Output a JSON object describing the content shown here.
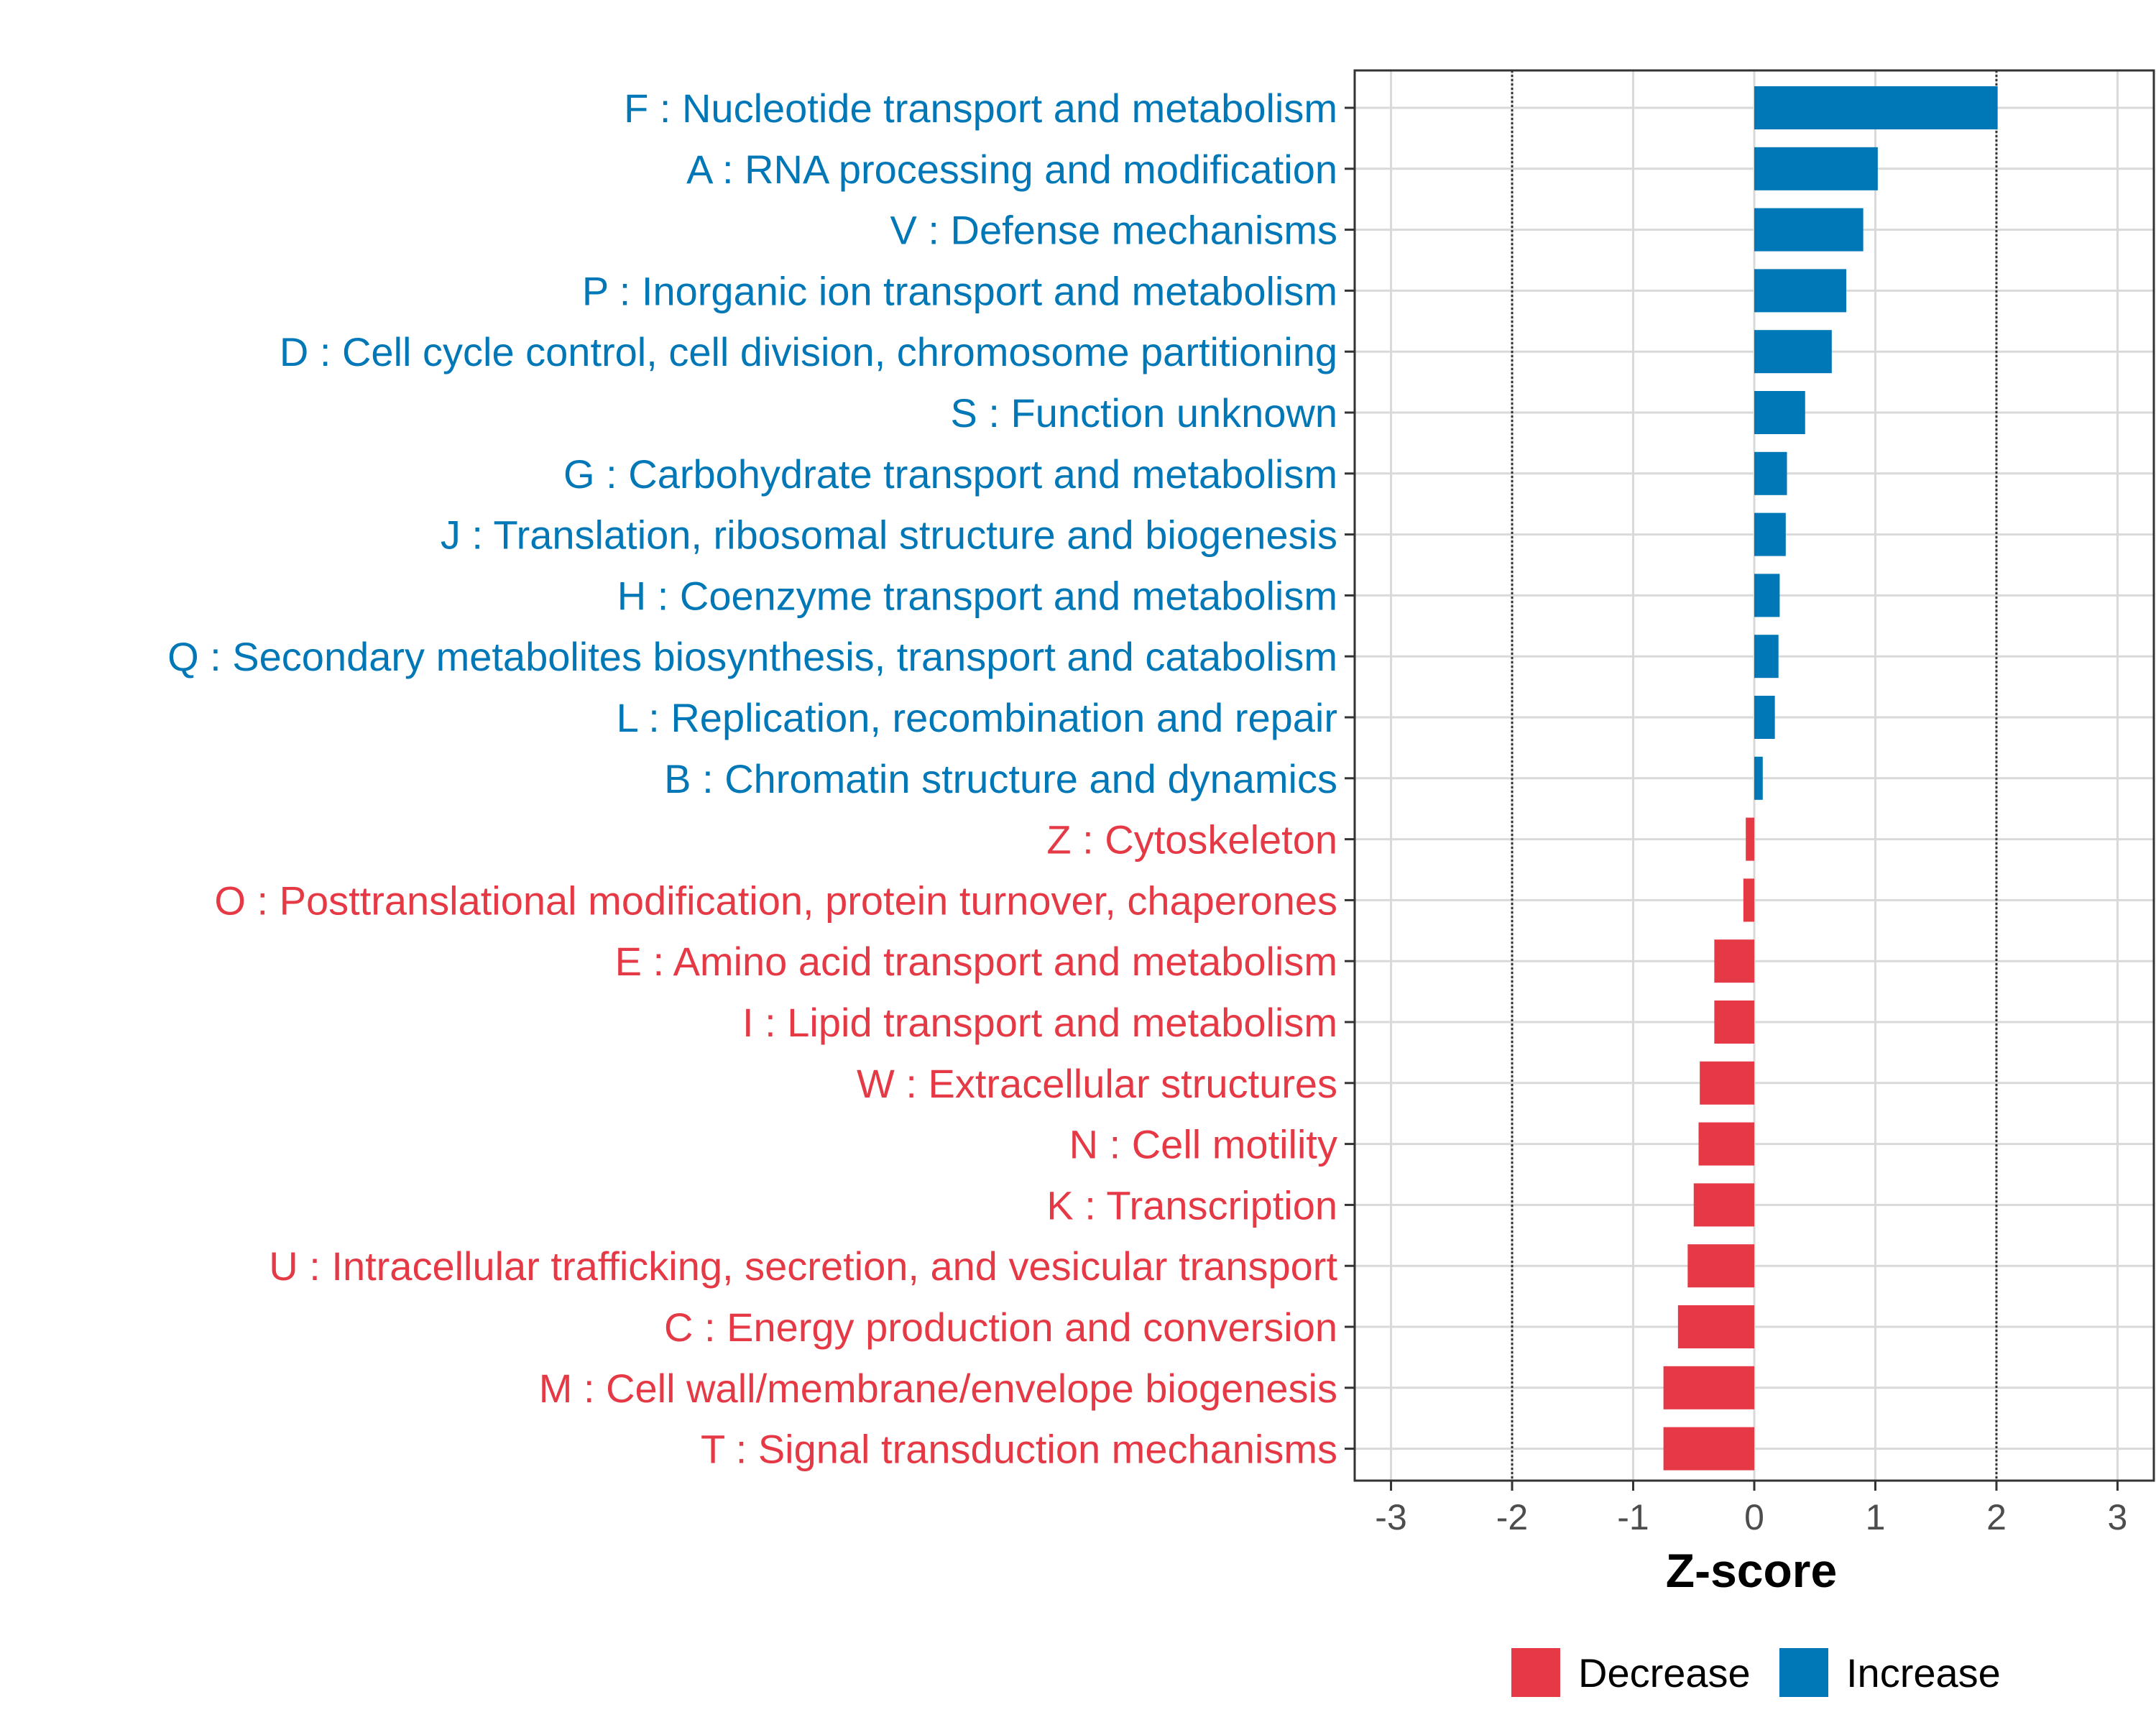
{
  "chart_data": {
    "type": "bar",
    "orientation": "horizontal",
    "title": "",
    "xlabel": "Z-score",
    "ylabel": "",
    "xlim": [
      -3.3,
      3.3
    ],
    "x_ticks": [
      -3,
      -2,
      -1,
      0,
      1,
      2,
      3
    ],
    "reference_lines": [
      -2,
      2
    ],
    "grid": true,
    "legend_position": "bottom",
    "colors": {
      "Decrease": "#e63946",
      "Increase": "#0077b6"
    },
    "legend": [
      {
        "key": "Decrease",
        "label": "Decrease"
      },
      {
        "key": "Increase",
        "label": "Increase"
      }
    ],
    "categories": [
      "F : Nucleotide transport and metabolism",
      "A : RNA processing and modification",
      "V : Defense mechanisms",
      "P : Inorganic ion transport and metabolism",
      "D : Cell cycle control, cell division, chromosome partitioning",
      "S : Function unknown",
      "G : Carbohydrate transport and metabolism",
      "J : Translation, ribosomal structure and biogenesis",
      "H : Coenzyme transport and metabolism",
      "Q : Secondary metabolites biosynthesis, transport and catabolism",
      "L : Replication, recombination and repair",
      "B : Chromatin structure and dynamics",
      "Z : Cytoskeleton",
      "O : Posttranslational modification, protein turnover, chaperones",
      "E : Amino acid transport and metabolism",
      "I : Lipid transport and metabolism",
      "W : Extracellular structures",
      "N : Cell motility",
      "K : Transcription",
      "U : Intracellular trafficking, secretion, and vesicular transport",
      "C : Energy production and conversion",
      "M : Cell wall/membrane/envelope biogenesis",
      "T : Signal transduction mechanisms"
    ],
    "values": [
      2.01,
      1.02,
      0.9,
      0.76,
      0.64,
      0.42,
      0.27,
      0.26,
      0.21,
      0.2,
      0.17,
      0.07,
      -0.07,
      -0.09,
      -0.33,
      -0.33,
      -0.45,
      -0.46,
      -0.5,
      -0.55,
      -0.63,
      -0.75,
      -0.75
    ],
    "direction": [
      "Increase",
      "Increase",
      "Increase",
      "Increase",
      "Increase",
      "Increase",
      "Increase",
      "Increase",
      "Increase",
      "Increase",
      "Increase",
      "Increase",
      "Decrease",
      "Decrease",
      "Decrease",
      "Decrease",
      "Decrease",
      "Decrease",
      "Decrease",
      "Decrease",
      "Decrease",
      "Decrease",
      "Decrease"
    ]
  }
}
